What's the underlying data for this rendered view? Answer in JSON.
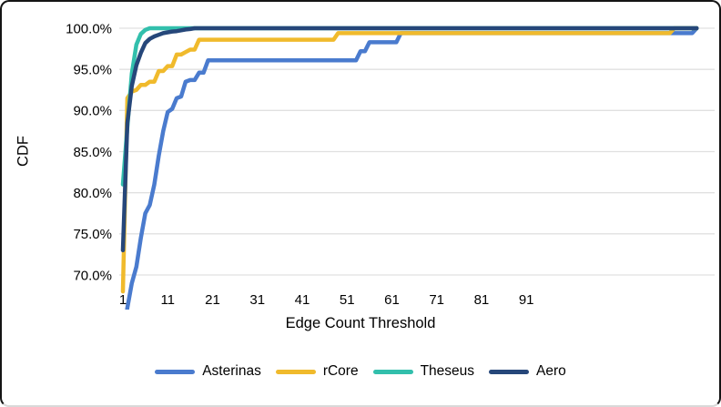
{
  "figure": {
    "background": "#ffffff",
    "border_color": "#141414",
    "grid_color": "#e0e0e0",
    "text_color": "#000000"
  },
  "chart_data": {
    "type": "line",
    "title": "",
    "xlabel": "Edge Count Threshold",
    "ylabel": "CDF",
    "xlim": [
      1,
      133
    ],
    "ylim": [
      70,
      100
    ],
    "grid": "horizontal",
    "legend_position": "bottom",
    "x_ticks": [
      {
        "value": 1,
        "label": "1"
      },
      {
        "value": 11,
        "label": "11"
      },
      {
        "value": 21,
        "label": "21"
      },
      {
        "value": 31,
        "label": "31"
      },
      {
        "value": 41,
        "label": "41"
      },
      {
        "value": 51,
        "label": "51"
      },
      {
        "value": 61,
        "label": "61"
      },
      {
        "value": 71,
        "label": "71"
      },
      {
        "value": 81,
        "label": "81"
      },
      {
        "value": 91,
        "label": "91"
      }
    ],
    "y_ticks": [
      {
        "value": 100,
        "label": "100.0%"
      },
      {
        "value": 95,
        "label": "95.0%"
      },
      {
        "value": 90,
        "label": "90.0%"
      },
      {
        "value": 85,
        "label": "85.0%"
      },
      {
        "value": 80,
        "label": "80.0%"
      },
      {
        "value": 75,
        "label": "75.0%"
      },
      {
        "value": 70,
        "label": "70.0%"
      }
    ],
    "series": [
      {
        "name": "Asterinas",
        "color": "#4a7bce",
        "points": [
          [
            1,
            62
          ],
          [
            2,
            66
          ],
          [
            3,
            69
          ],
          [
            4,
            71
          ],
          [
            5,
            74.5
          ],
          [
            6,
            77.5
          ],
          [
            7,
            78.5
          ],
          [
            8,
            81
          ],
          [
            9,
            84.5
          ],
          [
            10,
            87.5
          ],
          [
            11,
            89.8
          ],
          [
            12,
            90.2
          ],
          [
            13,
            91.5
          ],
          [
            14,
            91.7
          ],
          [
            15,
            93.5
          ],
          [
            16,
            93.7
          ],
          [
            17,
            93.7
          ],
          [
            18,
            94.6
          ],
          [
            19,
            94.6
          ],
          [
            20,
            96.1
          ],
          [
            53,
            96.1
          ],
          [
            54,
            97.2
          ],
          [
            55,
            97.2
          ],
          [
            56,
            98.3
          ],
          [
            62,
            98.3
          ],
          [
            63,
            99.4
          ],
          [
            128,
            99.4
          ],
          [
            129,
            100
          ]
        ]
      },
      {
        "name": "rCore",
        "color": "#f0ba2c",
        "points": [
          [
            1,
            68
          ],
          [
            2,
            91.5
          ],
          [
            3,
            92.3
          ],
          [
            4,
            92.5
          ],
          [
            5,
            93.1
          ],
          [
            6,
            93.1
          ],
          [
            7,
            93.5
          ],
          [
            8,
            93.5
          ],
          [
            9,
            94.8
          ],
          [
            10,
            94.8
          ],
          [
            11,
            95.4
          ],
          [
            12,
            95.4
          ],
          [
            13,
            96.8
          ],
          [
            14,
            96.8
          ],
          [
            15,
            97.1
          ],
          [
            16,
            97.4
          ],
          [
            17,
            97.4
          ],
          [
            18,
            98.6
          ],
          [
            48,
            98.6
          ],
          [
            49,
            99.4
          ],
          [
            123,
            99.4
          ],
          [
            124,
            100
          ],
          [
            129,
            100
          ]
        ]
      },
      {
        "name": "Theseus",
        "color": "#32bfac",
        "points": [
          [
            1,
            81
          ],
          [
            2,
            88
          ],
          [
            3,
            94.5
          ],
          [
            4,
            98
          ],
          [
            5,
            99.3
          ],
          [
            6,
            99.8
          ],
          [
            7,
            100
          ],
          [
            129,
            100
          ]
        ]
      },
      {
        "name": "Aero",
        "color": "#26477a",
        "points": [
          [
            1,
            73
          ],
          [
            2,
            88.5
          ],
          [
            3,
            93
          ],
          [
            4,
            95.5
          ],
          [
            5,
            97
          ],
          [
            6,
            98.2
          ],
          [
            7,
            98.7
          ],
          [
            8,
            99
          ],
          [
            9,
            99.2
          ],
          [
            10,
            99.4
          ],
          [
            11,
            99.5
          ],
          [
            12,
            99.6
          ],
          [
            13,
            99.65
          ],
          [
            14,
            99.75
          ],
          [
            15,
            99.85
          ],
          [
            16,
            99.9
          ],
          [
            17,
            100
          ],
          [
            129,
            100
          ]
        ]
      }
    ]
  }
}
